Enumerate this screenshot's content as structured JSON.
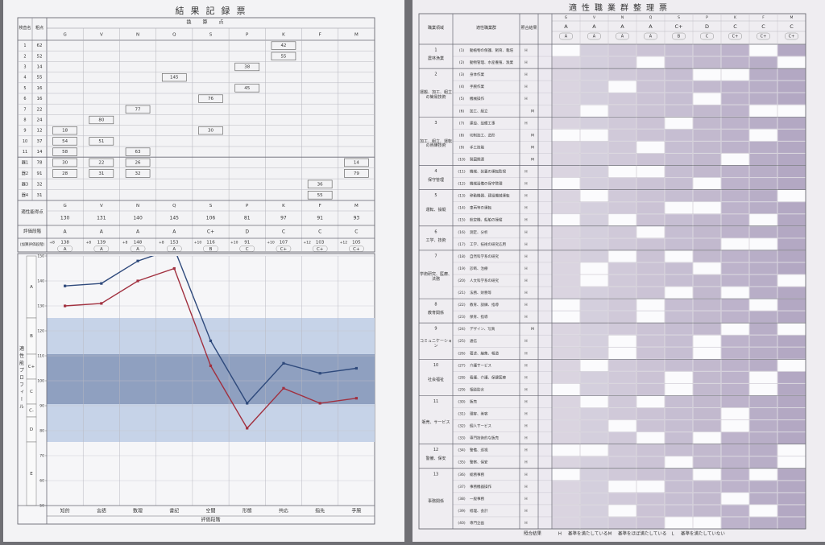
{
  "score_table": {
    "title": "結果記録票",
    "headers": {
      "test_name": "検査名",
      "raw": "粗点",
      "converted": "換算点"
    },
    "columns": [
      "G",
      "V",
      "N",
      "Q",
      "S",
      "P",
      "K",
      "F",
      "M"
    ],
    "rows": [
      {
        "no": "1",
        "raw": 62,
        "cells": {
          "K": 42
        }
      },
      {
        "no": "2",
        "raw": 52,
        "cells": {
          "K": 55
        }
      },
      {
        "no": "3",
        "raw": 14,
        "cells": {
          "P": 38
        }
      },
      {
        "no": "4",
        "raw": 55,
        "cells": {
          "Q": 145
        }
      },
      {
        "no": "5",
        "raw": 16,
        "cells": {
          "P": 45
        }
      },
      {
        "no": "6",
        "raw": 16,
        "cells": {
          "S": 76
        }
      },
      {
        "no": "7",
        "raw": 22,
        "cells": {
          "N": 77
        }
      },
      {
        "no": "8",
        "raw": 24,
        "cells": {
          "V": 80
        }
      },
      {
        "no": "9",
        "raw": 12,
        "cells": {
          "G": 18,
          "S": 30
        }
      },
      {
        "no": "10",
        "raw": 37,
        "cells": {
          "G": 54,
          "V": 51
        }
      },
      {
        "no": "11",
        "raw": 14,
        "cells": {
          "G": 58,
          "N": 63
        }
      }
    ],
    "device_rows": [
      {
        "no": "器1",
        "raw": 78,
        "cells": {
          "G": 30,
          "V": 22,
          "N": 26,
          "M": 14
        }
      },
      {
        "no": "器2",
        "raw": 91,
        "cells": {
          "G": 28,
          "V": 31,
          "N": 32,
          "M": 79
        }
      },
      {
        "no": "器3",
        "raw": 32,
        "cells": {
          "F": 36
        }
      },
      {
        "no": "器4",
        "raw": 31,
        "cells": {
          "F": 55
        }
      }
    ],
    "aptitude": {
      "label": "適性能得点",
      "scores": [
        130,
        131,
        140,
        145,
        106,
        81,
        97,
        91,
        93
      ]
    },
    "grade": {
      "label": "評価段階",
      "grades": [
        "A",
        "A",
        "A",
        "A",
        "C+",
        "D",
        "C",
        "C",
        "C"
      ]
    },
    "adjusted": {
      "label": "(加算評価段階)",
      "items": [
        {
          "add": "+8",
          "score": 138,
          "grade": "A"
        },
        {
          "add": "+8",
          "score": 139,
          "grade": "A"
        },
        {
          "add": "+8",
          "score": 148,
          "grade": "A"
        },
        {
          "add": "+8",
          "score": 153,
          "grade": "A"
        },
        {
          "add": "+10",
          "score": 116,
          "grade": "B"
        },
        {
          "add": "+10",
          "score": 91,
          "grade": "C"
        },
        {
          "add": "+10",
          "score": 107,
          "grade": "C+"
        },
        {
          "add": "+12",
          "score": 103,
          "grade": "C+"
        },
        {
          "add": "+12",
          "score": 105,
          "grade": "C+"
        }
      ]
    }
  },
  "profile_chart": {
    "type": "line",
    "categories": [
      "知的",
      "言語",
      "数理",
      "書記",
      "空間",
      "形態",
      "共応",
      "指先",
      "手腕"
    ],
    "series": [
      {
        "color": "#2f4a7c",
        "values": [
          138,
          139,
          148,
          153,
          116,
          91,
          107,
          103,
          105
        ]
      },
      {
        "color": "#a1303f",
        "values": [
          130,
          131,
          140,
          145,
          106,
          81,
          97,
          91,
          93
        ]
      }
    ],
    "ylim": [
      50,
      150
    ],
    "yticks": [
      50,
      60,
      70,
      80,
      90,
      100,
      110,
      120,
      130,
      140,
      150
    ],
    "grid": true,
    "x_label": "評価段階",
    "side_label": "適性能プロフィール",
    "grade_labels": [
      "A",
      "B",
      "C+",
      "C",
      "C-",
      "D",
      "E"
    ]
  },
  "job_table": {
    "title": "適性職業群整理票",
    "headers": {
      "domain": "職業領域",
      "group": "適性職業群",
      "match": "照合結果"
    },
    "columns": [
      "G",
      "V",
      "N",
      "Q",
      "S",
      "P",
      "K",
      "F",
      "M"
    ],
    "grades": [
      "A",
      "A",
      "A",
      "A",
      "C+",
      "D",
      "C",
      "C",
      "C"
    ],
    "adjusted_grades": [
      "A",
      "A",
      "A",
      "A",
      "B",
      "C",
      "C+",
      "C+",
      "C+"
    ],
    "domains": [
      {
        "no": "1",
        "name": "農林漁業",
        "groups": [
          {
            "no": "(1)",
            "name": "動植物の保護、飼育、栽培",
            "match": "H"
          },
          {
            "no": "(2)",
            "name": "動物管理、水産養殖、漁業",
            "match": "H"
          }
        ]
      },
      {
        "no": "2",
        "name": "運搬、加工、組立の簡易技術",
        "groups": [
          {
            "no": "(3)",
            "name": "身体作業",
            "match": "H"
          },
          {
            "no": "(4)",
            "name": "手腕作業",
            "match": "H"
          },
          {
            "no": "(5)",
            "name": "機械操作",
            "match": "H"
          },
          {
            "no": "(6)",
            "name": "加工、組立",
            "match": "M"
          }
        ]
      },
      {
        "no": "3",
        "name": "加工、組立、運転の熟練技術",
        "groups": [
          {
            "no": "(7)",
            "name": "建設、設備工事",
            "match": "H"
          },
          {
            "no": "(8)",
            "name": "切削加工、造形",
            "match": "M"
          },
          {
            "no": "(9)",
            "name": "手工技能",
            "match": "M"
          },
          {
            "no": "(10)",
            "name": "製図関連",
            "match": "M"
          }
        ]
      },
      {
        "no": "4",
        "name": "保守管理",
        "groups": [
          {
            "no": "(11)",
            "name": "機械、装置の運転監視",
            "match": "H"
          },
          {
            "no": "(12)",
            "name": "機械設備の保守管理",
            "match": "H"
          }
        ]
      },
      {
        "no": "5",
        "name": "運転、操縦",
        "groups": [
          {
            "no": "(13)",
            "name": "移動機器、建設機械運転",
            "match": "H"
          },
          {
            "no": "(14)",
            "name": "車両等の運転",
            "match": "H"
          },
          {
            "no": "(15)",
            "name": "航空機、船舶の操縦",
            "match": "H"
          }
        ]
      },
      {
        "no": "6",
        "name": "工学、技術",
        "groups": [
          {
            "no": "(16)",
            "name": "測定、分析",
            "match": "H"
          },
          {
            "no": "(17)",
            "name": "工学、技術の研究応用",
            "match": "H"
          }
        ]
      },
      {
        "no": "7",
        "name": "学術研究、医療、法務",
        "groups": [
          {
            "no": "(18)",
            "name": "自然科学系の研究",
            "match": "H"
          },
          {
            "no": "(19)",
            "name": "診断、治療",
            "match": "H"
          },
          {
            "no": "(20)",
            "name": "人文科学系の研究",
            "match": "H"
          },
          {
            "no": "(21)",
            "name": "法務、財務等",
            "match": "H"
          }
        ]
      },
      {
        "no": "8",
        "name": "教育関係",
        "groups": [
          {
            "no": "(22)",
            "name": "教育、訓練、指導",
            "match": "H"
          },
          {
            "no": "(23)",
            "name": "保育、指導",
            "match": "H"
          }
        ]
      },
      {
        "no": "9",
        "name": "コミュニケーション",
        "groups": [
          {
            "no": "(24)",
            "name": "デザイン、写真",
            "match": "M"
          },
          {
            "no": "(25)",
            "name": "通信",
            "match": "H"
          },
          {
            "no": "(26)",
            "name": "著述、編集、報道",
            "match": "H"
          }
        ]
      },
      {
        "no": "10",
        "name": "社会福祉",
        "groups": [
          {
            "no": "(27)",
            "name": "介護サービス",
            "match": "H"
          },
          {
            "no": "(28)",
            "name": "看護、介護、保健医療",
            "match": "H"
          },
          {
            "no": "(29)",
            "name": "相談助言",
            "match": "H"
          }
        ]
      },
      {
        "no": "11",
        "name": "販売、サービス",
        "groups": [
          {
            "no": "(30)",
            "name": "販売",
            "match": "H"
          },
          {
            "no": "(31)",
            "name": "理容、美容",
            "match": "H"
          },
          {
            "no": "(32)",
            "name": "個人サービス",
            "match": "H"
          },
          {
            "no": "(33)",
            "name": "専門技術的な販売",
            "match": "H"
          }
        ]
      },
      {
        "no": "12",
        "name": "警備、保安",
        "groups": [
          {
            "no": "(34)",
            "name": "警備、巡視",
            "match": "H"
          },
          {
            "no": "(35)",
            "name": "警察、保安",
            "match": "H"
          }
        ]
      },
      {
        "no": "13",
        "name": "事務関係",
        "groups": [
          {
            "no": "(36)",
            "name": "総務事務",
            "match": "H"
          },
          {
            "no": "(37)",
            "name": "事務機器操作",
            "match": "H"
          },
          {
            "no": "(38)",
            "name": "一般事務",
            "match": "H"
          },
          {
            "no": "(39)",
            "name": "経理、会計",
            "match": "H"
          },
          {
            "no": "(40)",
            "name": "専門企画",
            "match": "H"
          }
        ]
      }
    ],
    "legend": {
      "title": "照合結果",
      "items": [
        {
          "key": "H",
          "text": "基準を満たしている"
        },
        {
          "key": "M",
          "text": "基準をほぼ満たしている"
        },
        {
          "key": "L",
          "text": "基準を満たしていない"
        }
      ]
    }
  }
}
